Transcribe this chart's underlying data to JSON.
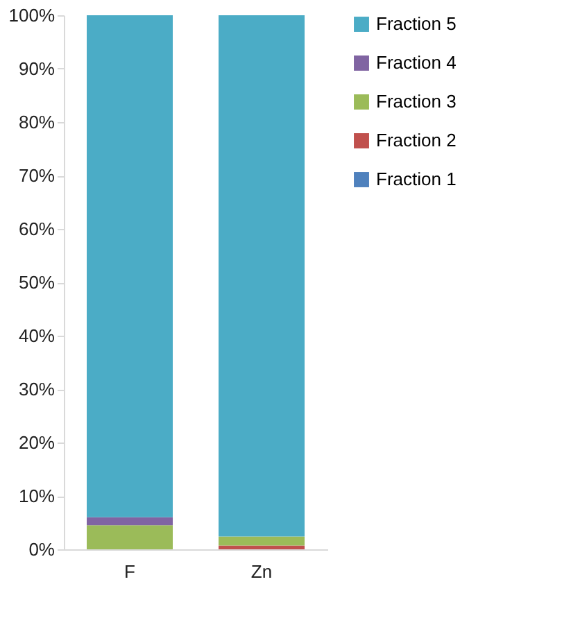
{
  "chart_data": {
    "type": "bar",
    "stacked": true,
    "categories": [
      "F",
      "Zn"
    ],
    "series": [
      {
        "name": "Fraction 1",
        "color": "#4f81bd",
        "values": [
          0,
          0
        ]
      },
      {
        "name": "Fraction 2",
        "color": "#c0504d",
        "values": [
          0,
          0.7
        ]
      },
      {
        "name": "Fraction 3",
        "color": "#9bbb59",
        "values": [
          4.5,
          1.7
        ]
      },
      {
        "name": "Fraction 4",
        "color": "#8064a2",
        "values": [
          1.5,
          0
        ]
      },
      {
        "name": "Fraction 5",
        "color": "#4bacc6",
        "values": [
          94,
          97.6
        ]
      }
    ],
    "ylim": [
      0,
      100
    ],
    "yticks": [
      {
        "value": 0,
        "label": "0%"
      },
      {
        "value": 10,
        "label": "10%"
      },
      {
        "value": 20,
        "label": "20%"
      },
      {
        "value": 30,
        "label": "30%"
      },
      {
        "value": 40,
        "label": "40%"
      },
      {
        "value": 50,
        "label": "50%"
      },
      {
        "value": 60,
        "label": "60%"
      },
      {
        "value": 70,
        "label": "70%"
      },
      {
        "value": 80,
        "label": "80%"
      },
      {
        "value": 90,
        "label": "90%"
      },
      {
        "value": 100,
        "label": "100%"
      }
    ],
    "grid": false,
    "legend": "right"
  }
}
